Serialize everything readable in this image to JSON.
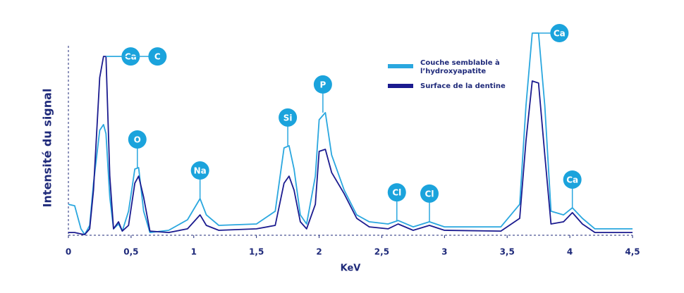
{
  "chart_data": {
    "type": "line",
    "x_label": "KeV",
    "y_label": "Intensité du signal",
    "xlim": [
      0,
      4.5
    ],
    "ylim": [
      0,
      100
    ],
    "xticks": [
      0,
      {
        "value": 0.5,
        "label": "0,5"
      },
      1,
      {
        "value": 1.5,
        "label": "1,5"
      },
      2,
      {
        "value": 2.5,
        "label": "2,5"
      },
      3,
      {
        "value": 3.5,
        "label": "3,5"
      },
      4,
      {
        "value": 4.5,
        "label": "4,5"
      }
    ],
    "x": [
      0,
      0.05,
      0.1,
      0.13,
      0.17,
      0.2,
      0.25,
      0.28,
      0.3,
      0.33,
      0.36,
      0.4,
      0.43,
      0.48,
      0.53,
      0.56,
      0.6,
      0.65,
      0.8,
      0.95,
      1.05,
      1.1,
      1.2,
      1.5,
      1.65,
      1.72,
      1.76,
      1.8,
      1.85,
      1.9,
      1.97,
      2.0,
      2.05,
      2.1,
      2.2,
      2.3,
      2.4,
      2.55,
      2.63,
      2.75,
      2.88,
      3.0,
      3.45,
      3.6,
      3.65,
      3.7,
      3.75,
      3.8,
      3.85,
      3.95,
      4.02,
      4.1,
      4.2,
      4.5
    ],
    "series": [
      {
        "name": "Couche semblable à l’hydroxyapatite",
        "color": "#2aa7df",
        "values": [
          14.9,
          14.2,
          2.8,
          0,
          4.5,
          25.3,
          51.4,
          54.2,
          49.7,
          18.4,
          2.8,
          5.2,
          1.7,
          11.5,
          32.3,
          33.0,
          11.5,
          1.0,
          2.1,
          7.3,
          17.7,
          9.7,
          4.5,
          5.2,
          11.5,
          42.7,
          43.8,
          32.3,
          9.7,
          5.2,
          28.8,
          56.6,
          60.1,
          39.2,
          21.9,
          9.7,
          6.3,
          5.2,
          6.9,
          3.8,
          6.3,
          3.8,
          3.8,
          14.9,
          63.5,
          99.3,
          99.3,
          63.5,
          11.5,
          9.7,
          13.2,
          8.0,
          2.8,
          2.8
        ]
      },
      {
        "name": "Surface de la dentine",
        "color": "#1b1b8f",
        "values": [
          1.0,
          1.0,
          0.3,
          0,
          2.8,
          21.9,
          77.4,
          87.8,
          87.8,
          28.8,
          2.8,
          6.3,
          1.7,
          4.5,
          25.3,
          28.8,
          18.4,
          1.7,
          1.0,
          2.8,
          9.7,
          4.5,
          2.1,
          2.8,
          4.5,
          25.3,
          28.8,
          21.9,
          6.3,
          2.8,
          14.9,
          41.0,
          42.0,
          30.6,
          20.1,
          8.0,
          3.8,
          2.8,
          5.2,
          2.1,
          4.5,
          2.1,
          1.7,
          8.0,
          46.2,
          75.7,
          74.7,
          39.2,
          5.2,
          6.3,
          10.8,
          5.2,
          1.0,
          1.0
        ]
      }
    ],
    "annotations": [
      {
        "label": "Ca",
        "x": 0.3
      },
      {
        "label": "C",
        "x": 0.3
      },
      {
        "label": "O",
        "x": 0.55
      },
      {
        "label": "Na",
        "x": 1.05
      },
      {
        "label": "Si",
        "x": 1.75
      },
      {
        "label": "P",
        "x": 2.03
      },
      {
        "label": "Cl",
        "x": 2.62
      },
      {
        "label": "Cl",
        "x": 2.88
      },
      {
        "label": "Ca",
        "x": 3.72
      },
      {
        "label": "Ca",
        "x": 4.02
      }
    ]
  }
}
